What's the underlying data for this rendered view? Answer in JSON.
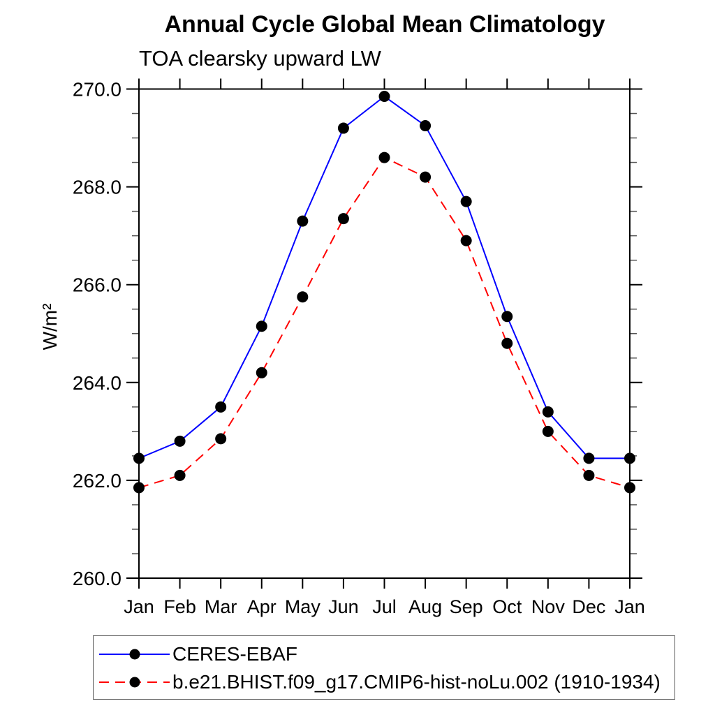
{
  "window": {
    "background": "#ffffff"
  },
  "chart_data": {
    "type": "line",
    "title": "Annual Cycle Global Mean Climatology",
    "subtitle": "TOA clearsky upward LW",
    "ylabel": "W/m²",
    "xlabel": "",
    "categories": [
      "Jan",
      "Feb",
      "Mar",
      "Apr",
      "May",
      "Jun",
      "Jul",
      "Aug",
      "Sep",
      "Oct",
      "Nov",
      "Dec",
      "Jan"
    ],
    "ylim": [
      260.0,
      270.0
    ],
    "ytick_major_step": 2.0,
    "ytick_minor_step": 0.5,
    "ytick_labels": [
      "260.0",
      "262.0",
      "264.0",
      "266.0",
      "268.0",
      "270.0"
    ],
    "grid": false,
    "legend_position": "bottom",
    "axis_color": "#000000",
    "minor_tick_color": "#555555",
    "series": [
      {
        "name": "CERES-EBAF",
        "color": "#0000ff",
        "line_style": "solid",
        "marker": "filled-circle",
        "marker_color": "#000000",
        "values": [
          262.45,
          262.8,
          263.5,
          265.15,
          267.3,
          269.2,
          269.85,
          269.25,
          267.7,
          265.35,
          263.4,
          262.45,
          262.45
        ]
      },
      {
        "name": "b.e21.BHIST.f09_g17.CMIP6-hist-noLu.002 (1910-1934)",
        "color": "#ff0000",
        "line_style": "dashed",
        "marker": "filled-circle",
        "marker_color": "#000000",
        "values": [
          261.85,
          262.1,
          262.85,
          264.2,
          265.75,
          267.35,
          268.6,
          268.2,
          266.9,
          264.8,
          263.0,
          262.1,
          261.85
        ]
      }
    ]
  }
}
